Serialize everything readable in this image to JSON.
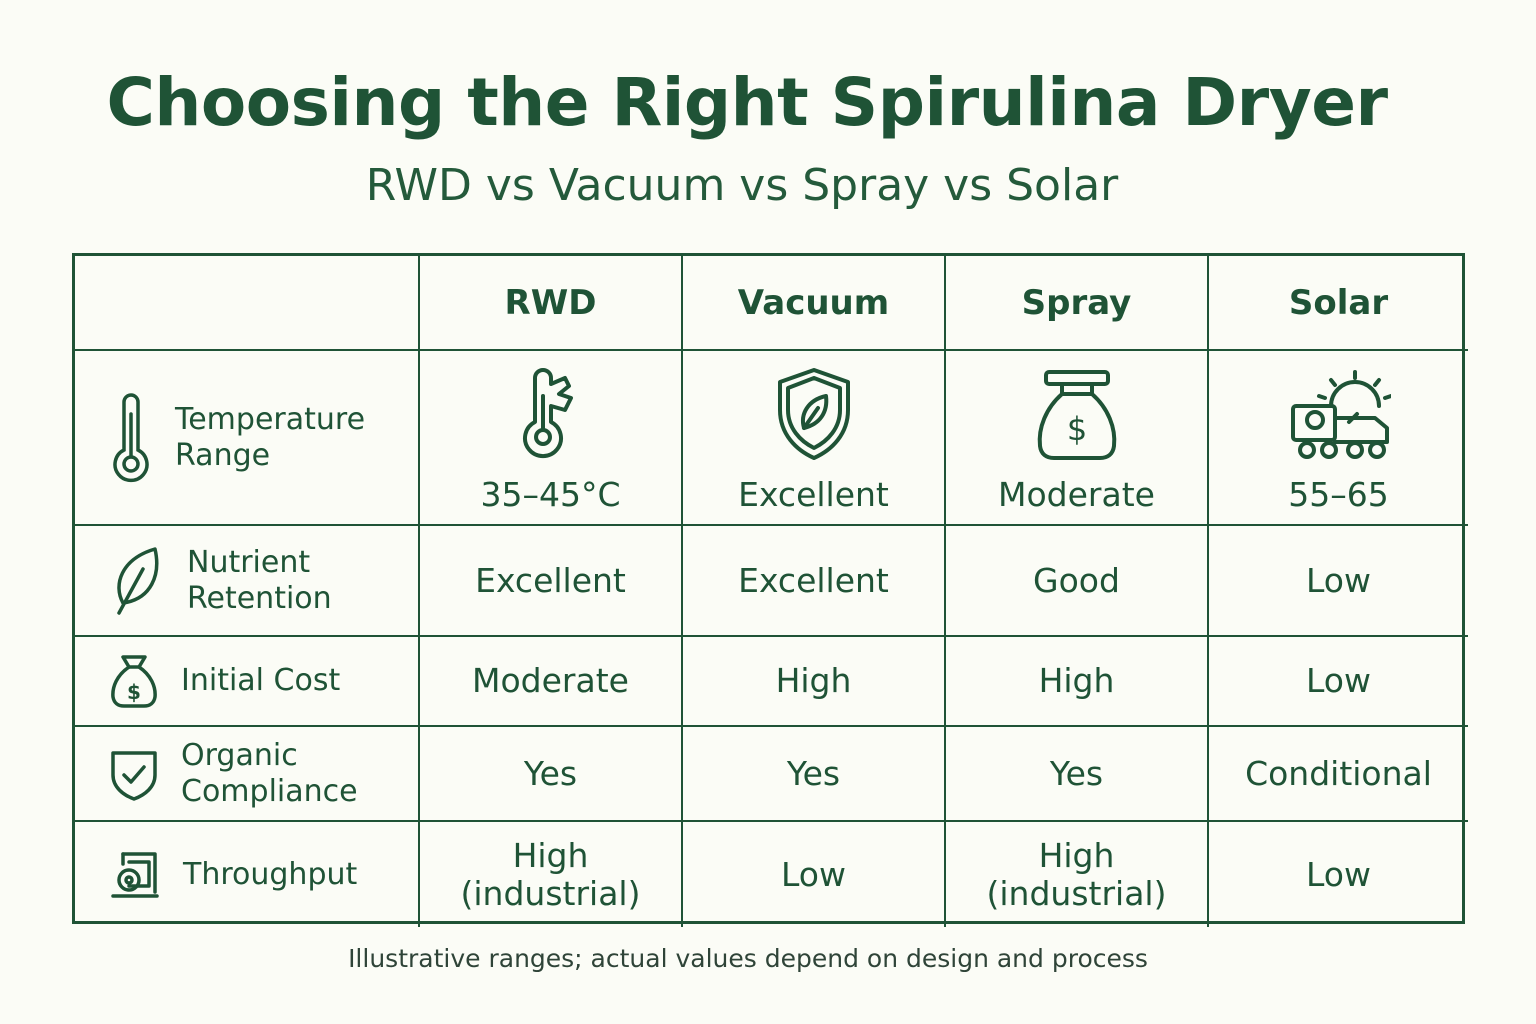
{
  "title": "Choosing the Right Spirulina Dryer",
  "subtitle": "RWD vs Vacuum vs Spray vs Solar",
  "columns": [
    "RWD",
    "Vacuum",
    "Spray",
    "Solar"
  ],
  "rows": [
    {
      "label": "Temperature\nRange",
      "label_icon": "thermometer-icon",
      "cell_icons": [
        "thermometer-icon",
        "shield-leaf-icon",
        "money-bag-icon",
        "solar-dryer-truck-icon"
      ],
      "values": [
        "35–45°C",
        "Excellent",
        "Moderate",
        "55–65"
      ]
    },
    {
      "label": "Nutrient\nRetention",
      "label_icon": "leaf-icon",
      "values": [
        "Excellent",
        "Excellent",
        "Good",
        "Low"
      ]
    },
    {
      "label": "Initial Cost",
      "label_icon": "money-bag-icon",
      "values": [
        "Moderate",
        "High",
        "High",
        "Low"
      ]
    },
    {
      "label": "Organic\nCompliance",
      "label_icon": "shield-check-icon",
      "values": [
        "Yes",
        "Yes",
        "Yes",
        "Conditional"
      ]
    },
    {
      "label": "Throughput",
      "label_icon": "machine-icon",
      "values": [
        "High\n(industrial)",
        "Low",
        "High\n(industrial)",
        "Low"
      ]
    }
  ],
  "footnote": "Illustrative ranges; actual values depend on design and process",
  "colors": {
    "primary": "#1f5336",
    "background": "#fbfcf6"
  }
}
